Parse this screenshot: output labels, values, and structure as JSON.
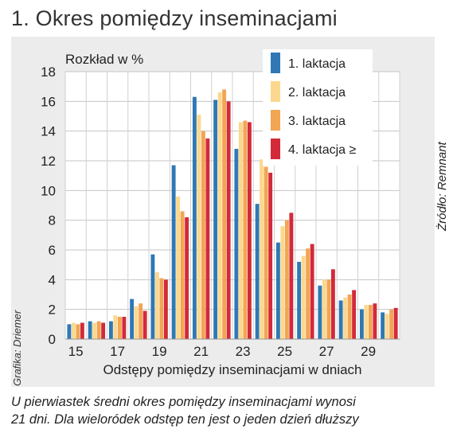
{
  "heading": "1.  Okres pomiędzy inseminacjami",
  "credit_left": "Grafika: Driemer",
  "credit_right": "Żródło: Remnant",
  "caption": {
    "line1": "U pierwiastek średni okres pomiędzy inseminacjami wynosi",
    "line2": "21 dni. Dla wieloródek odstęp ten jest o jeden dzień dłuższy"
  },
  "chart_data": {
    "type": "bar",
    "title": "",
    "ylabel": "Rozkład w  %",
    "xlabel": "Odstępy pomiędzy inseminacjami w dniach",
    "ylim": [
      0,
      18
    ],
    "yticks": [
      0,
      2,
      4,
      6,
      8,
      10,
      12,
      14,
      16,
      18
    ],
    "xticks": [
      15,
      17,
      19,
      21,
      23,
      25,
      27,
      29
    ],
    "grid": true,
    "legend_position": "top-right",
    "categories": [
      15,
      16,
      17,
      18,
      19,
      20,
      21,
      22,
      23,
      24,
      25,
      26,
      27,
      28,
      29,
      30
    ],
    "series": [
      {
        "name": "1. laktacja",
        "color": "#2f78b4",
        "values": [
          1.0,
          1.2,
          1.2,
          2.7,
          5.7,
          11.7,
          16.3,
          16.1,
          12.8,
          9.1,
          6.5,
          5.2,
          3.6,
          2.6,
          2.0,
          1.8
        ]
      },
      {
        "name": "2. laktacja",
        "color": "#fcd88e",
        "values": [
          1.1,
          1.1,
          1.6,
          2.2,
          4.5,
          9.6,
          15.1,
          16.6,
          14.6,
          12.1,
          7.6,
          5.6,
          4.0,
          2.8,
          2.3,
          1.7
        ]
      },
      {
        "name": "3. laktacja",
        "color": "#f2a553",
        "values": [
          1.0,
          1.2,
          1.5,
          2.4,
          4.1,
          8.6,
          14.0,
          16.8,
          14.7,
          11.6,
          8.0,
          6.1,
          4.0,
          3.0,
          2.3,
          2.0
        ]
      },
      {
        "name": "4. laktacja ≥",
        "color": "#d32a3a",
        "values": [
          1.1,
          1.1,
          1.5,
          1.9,
          4.0,
          8.2,
          13.5,
          16.0,
          14.6,
          11.2,
          8.5,
          6.4,
          4.7,
          3.3,
          2.4,
          2.1
        ]
      }
    ]
  }
}
